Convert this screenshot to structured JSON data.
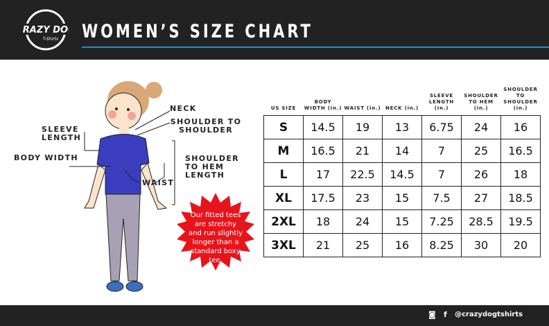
{
  "header": {
    "title": "WOMEN’S SIZE CHART",
    "logo_text": "CRAZY DOG T-Shirts",
    "accent": "#1a8fd6"
  },
  "labels": {
    "neck": "NECK",
    "shoulder_to_shoulder": "SHOULDER TO SHOULDER",
    "sleeve_length": "SLEEVE LENGTH",
    "body_width": "BODY WIDTH",
    "shoulder_to_hem": "SHOULDER TO HEM LENGTH",
    "waist": "WAIST"
  },
  "callout": {
    "text": "Our fitted tees are stretchy and run slightly longer than a standard boxy tee.",
    "color": "#e8141b"
  },
  "table": {
    "headers": [
      "US SIZE",
      "BODY WIDTH (in.)",
      "WAIST (in.)",
      "NECK (in.)",
      "SLEEVE LENGTH (in.)",
      "SHOULDER TO HEM (in.)",
      "SHOULDER TO SHOULDER (in.)"
    ],
    "rows": [
      [
        "S",
        "14.5",
        "19",
        "13",
        "6.75",
        "24",
        "16"
      ],
      [
        "M",
        "16.5",
        "21",
        "14",
        "7",
        "25",
        "16.5"
      ],
      [
        "L",
        "17",
        "22.5",
        "14.5",
        "7",
        "26",
        "18"
      ],
      [
        "XL",
        "17.5",
        "23",
        "15",
        "7.5",
        "27",
        "18.5"
      ],
      [
        "2XL",
        "18",
        "24",
        "15",
        "7.25",
        "28.5",
        "19.5"
      ],
      [
        "3XL",
        "21",
        "25",
        "16",
        "8.25",
        "30",
        "20"
      ]
    ]
  },
  "footer": {
    "handle": "@crazydogtshirts",
    "icons": [
      "instagram-icon",
      "facebook-icon"
    ]
  }
}
